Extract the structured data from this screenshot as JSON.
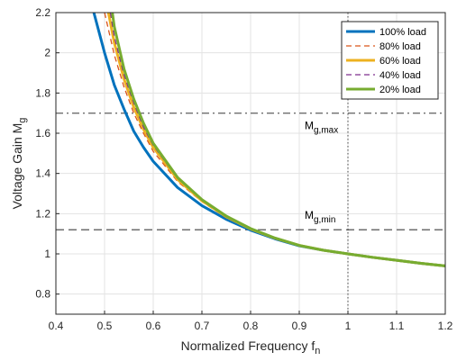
{
  "chart_data": {
    "type": "line",
    "xlabel": "Normalized Frequency",
    "xlabel_sub": "n",
    "xlabel_main": "f",
    "ylabel_main": "Voltage Gain M",
    "ylabel_sub": "g",
    "xlim": [
      0.4,
      1.2
    ],
    "ylim": [
      0.7,
      2.2
    ],
    "xticks": [
      "0.4",
      "0.5",
      "0.6",
      "0.7",
      "0.8",
      "0.9",
      "1",
      "1.1",
      "1.2"
    ],
    "yticks": [
      "0.8",
      "1",
      "1.2",
      "1.4",
      "1.6",
      "1.8",
      "2",
      "2.2"
    ],
    "grid": true,
    "legend_position": "top-right",
    "annotations": {
      "mg_max": {
        "main": "M",
        "sub": "g,max",
        "value": 1.7
      },
      "mg_min": {
        "main": "M",
        "sub": "g,min",
        "value": 1.12
      },
      "fn_line": 1.0
    },
    "series": [
      {
        "name": "100% load",
        "color": "#0072BD",
        "style": "solid",
        "width": 3,
        "x": [
          0.478,
          0.5,
          0.52,
          0.54,
          0.56,
          0.58,
          0.6,
          0.65,
          0.7,
          0.75,
          0.8,
          0.85,
          0.9,
          0.95,
          1.0,
          1.05,
          1.1,
          1.15,
          1.2
        ],
        "y": [
          2.2,
          2.0,
          1.84,
          1.72,
          1.61,
          1.53,
          1.46,
          1.33,
          1.24,
          1.172,
          1.118,
          1.075,
          1.04,
          1.018,
          1.0,
          0.983,
          0.968,
          0.953,
          0.94
        ]
      },
      {
        "name": "80% load",
        "color": "#D95319",
        "style": "dashed",
        "width": 1.3,
        "x": [
          0.5,
          0.52,
          0.54,
          0.56,
          0.58,
          0.6,
          0.65,
          0.7,
          0.75,
          0.8,
          0.85,
          0.9,
          0.95,
          1.0,
          1.05,
          1.1,
          1.15,
          1.2
        ],
        "y": [
          2.2,
          1.99,
          1.83,
          1.7,
          1.6,
          1.51,
          1.36,
          1.26,
          1.18,
          1.122,
          1.077,
          1.041,
          1.018,
          1.0,
          0.983,
          0.968,
          0.953,
          0.94
        ]
      },
      {
        "name": "60% load",
        "color": "#EDB120",
        "style": "solid",
        "width": 3,
        "x": [
          0.508,
          0.52,
          0.54,
          0.56,
          0.58,
          0.6,
          0.65,
          0.7,
          0.75,
          0.8,
          0.85,
          0.9,
          0.95,
          1.0,
          1.05,
          1.1,
          1.15,
          1.2
        ],
        "y": [
          2.2,
          2.05,
          1.87,
          1.73,
          1.62,
          1.53,
          1.37,
          1.265,
          1.185,
          1.124,
          1.078,
          1.042,
          1.018,
          1.0,
          0.983,
          0.968,
          0.953,
          0.94
        ]
      },
      {
        "name": "40% load",
        "color": "#7E2F8E",
        "style": "dashed",
        "width": 1.3,
        "x": [
          0.512,
          0.52,
          0.54,
          0.56,
          0.58,
          0.6,
          0.65,
          0.7,
          0.75,
          0.8,
          0.85,
          0.9,
          0.95,
          1.0,
          1.05,
          1.1,
          1.15,
          1.2
        ],
        "y": [
          2.2,
          2.08,
          1.89,
          1.75,
          1.63,
          1.54,
          1.375,
          1.268,
          1.187,
          1.125,
          1.078,
          1.042,
          1.018,
          1.0,
          0.983,
          0.968,
          0.953,
          0.94
        ]
      },
      {
        "name": "20% load",
        "color": "#77AC30",
        "style": "solid",
        "width": 3,
        "x": [
          0.516,
          0.52,
          0.54,
          0.56,
          0.58,
          0.6,
          0.65,
          0.7,
          0.75,
          0.8,
          0.85,
          0.9,
          0.95,
          1.0,
          1.05,
          1.1,
          1.15,
          1.2
        ],
        "y": [
          2.2,
          2.13,
          1.92,
          1.77,
          1.65,
          1.55,
          1.38,
          1.27,
          1.188,
          1.126,
          1.079,
          1.042,
          1.018,
          1.0,
          0.983,
          0.968,
          0.953,
          0.94
        ]
      }
    ]
  }
}
